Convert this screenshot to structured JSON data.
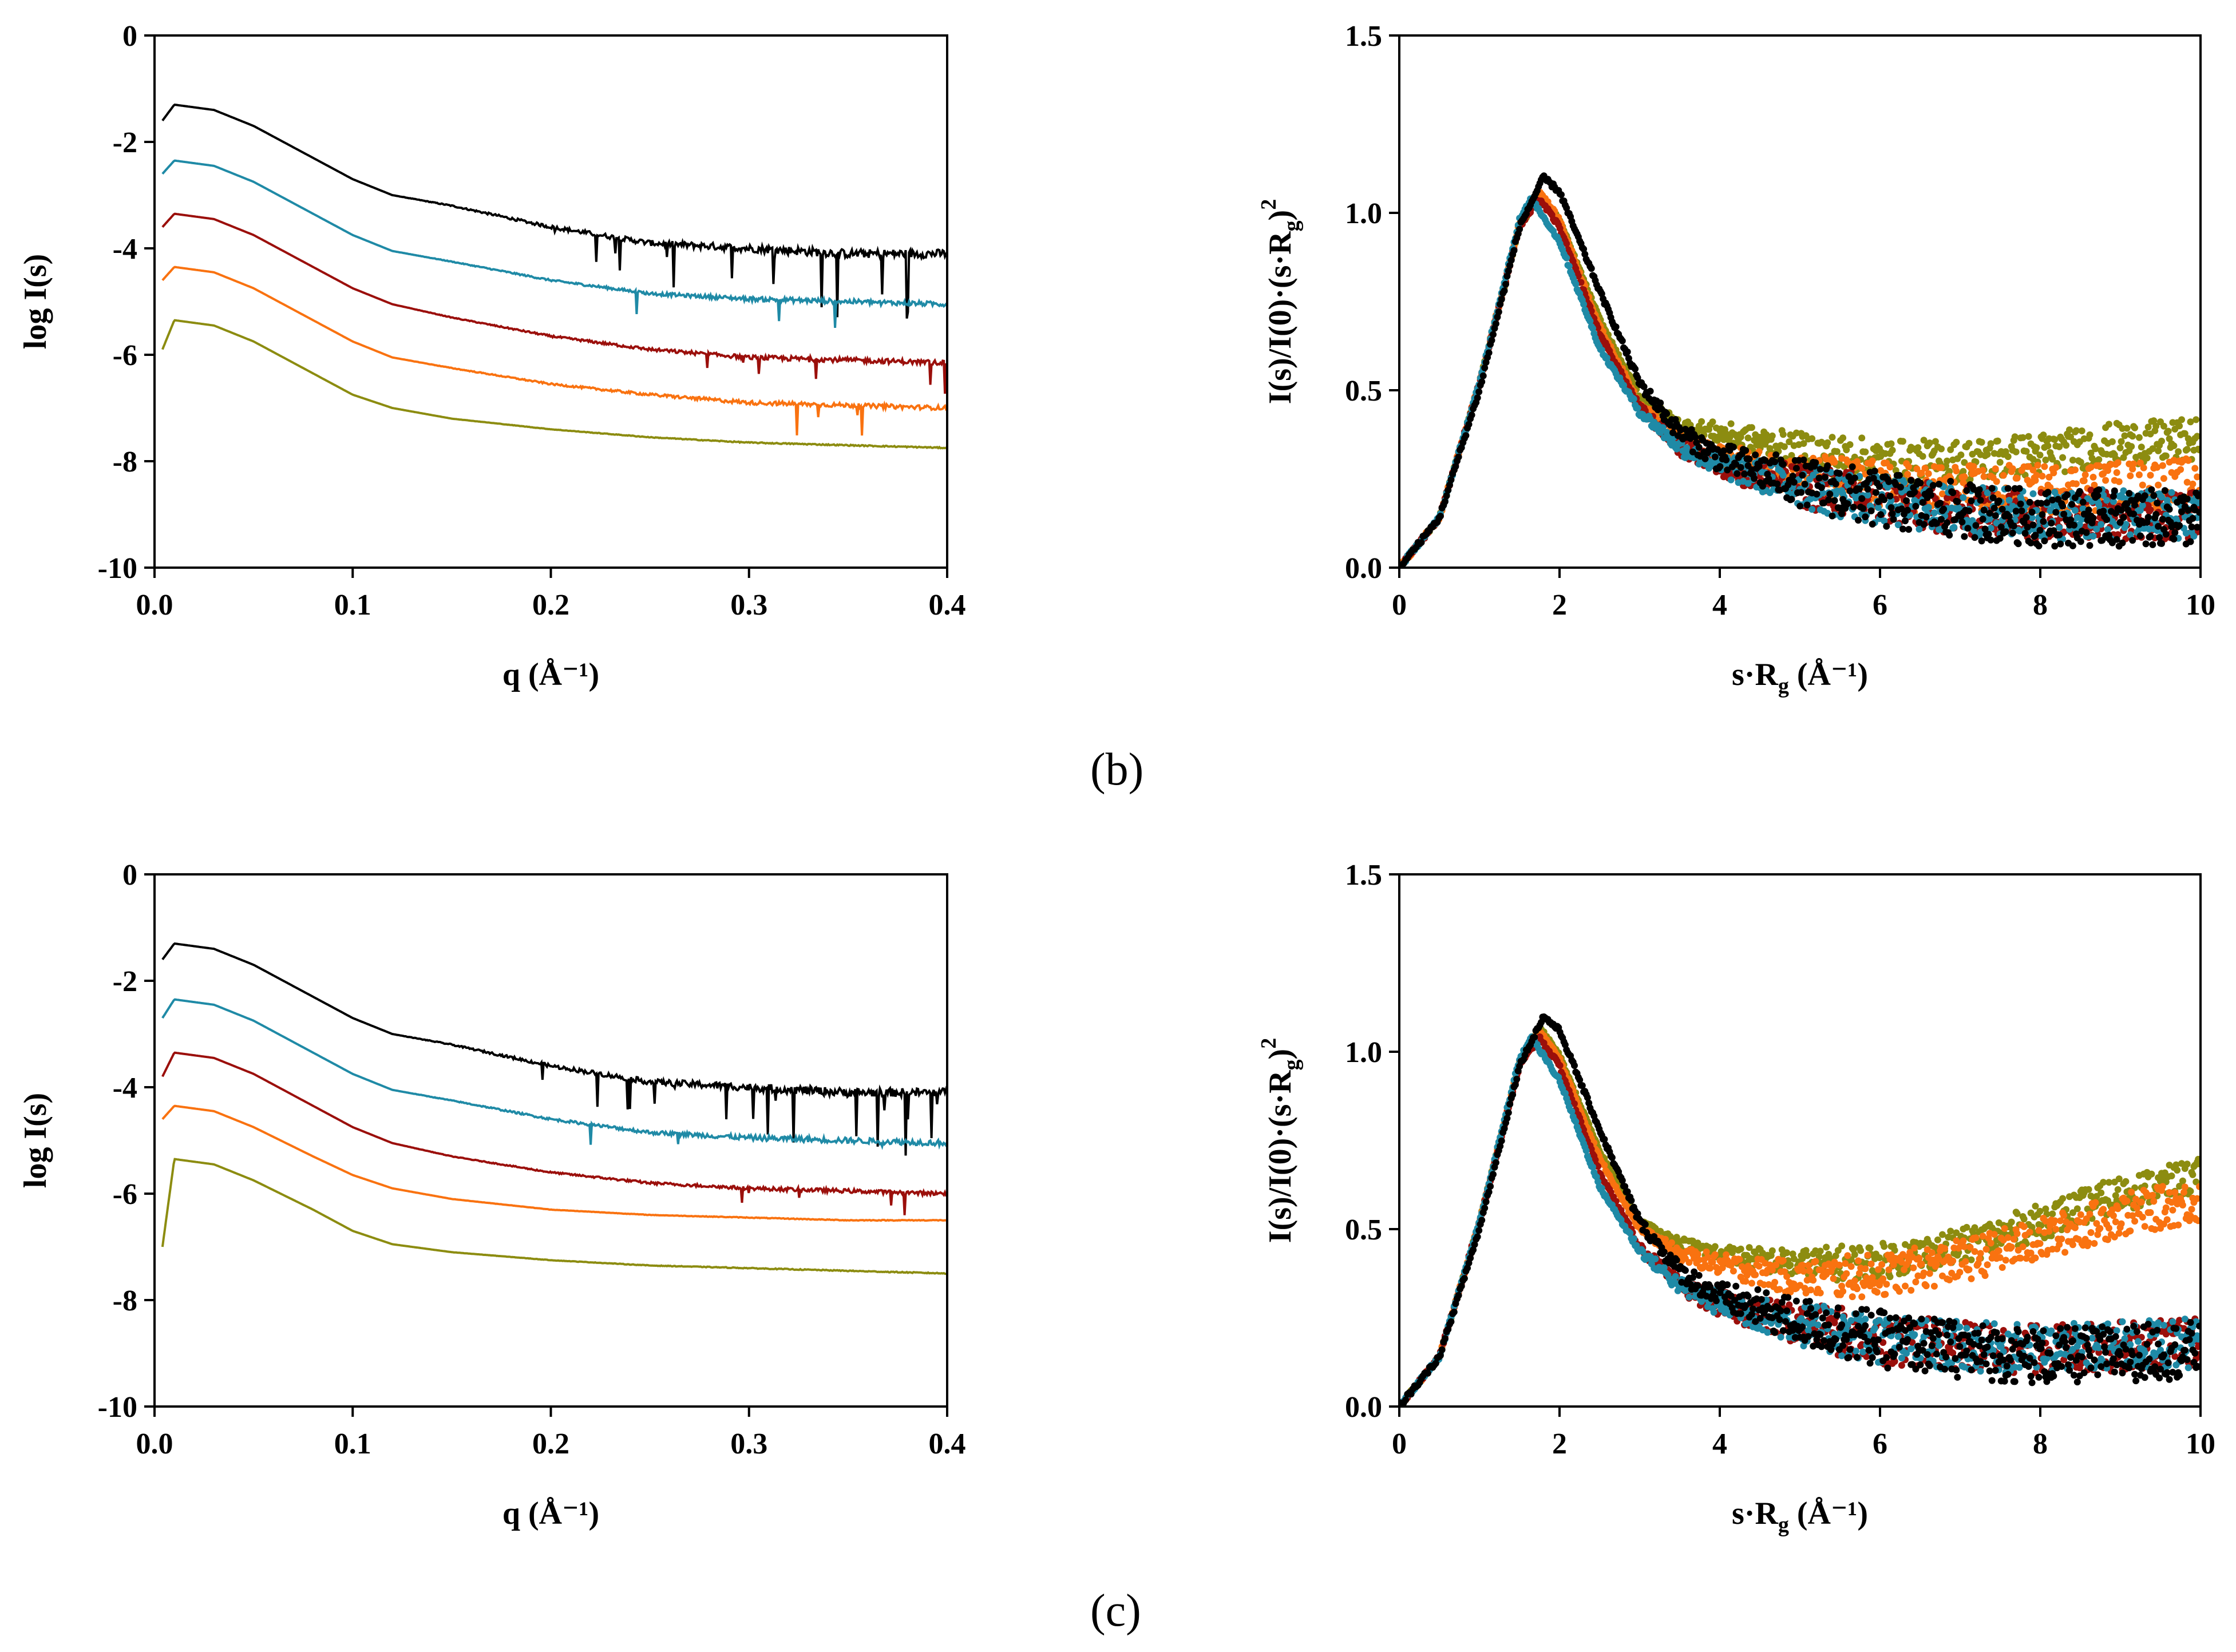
{
  "panels": [
    {
      "label": "(b)"
    },
    {
      "label": "(c)"
    }
  ],
  "series_colors": {
    "black": "#000000",
    "teal": "#1f8aa6",
    "darkred": "#9b0f0b",
    "orange": "#f97210",
    "olive": "#8c8c10"
  },
  "chart_data": [
    {
      "id": "b-left",
      "panel": "(b)",
      "type": "line",
      "xlabel": "q (Å⁻¹)",
      "ylabel": "log I(s)",
      "xlim": [
        0.0,
        0.4
      ],
      "ylim": [
        -10,
        0
      ],
      "xticks": [
        "0.0",
        "0.1",
        "0.2",
        "0.3",
        "0.4"
      ],
      "yticks": [
        "0",
        "-2",
        "-4",
        "-6",
        "-8",
        "-10"
      ],
      "series": [
        {
          "name": "black",
          "x": [
            0.004,
            0.01,
            0.03,
            0.05,
            0.08,
            0.1,
            0.12,
            0.15,
            0.2,
            0.25,
            0.3,
            0.35,
            0.4
          ],
          "y": [
            -1.6,
            -1.3,
            -1.4,
            -1.7,
            -2.3,
            -2.7,
            -3.0,
            -3.2,
            -3.6,
            -3.9,
            -4.0,
            -4.1,
            -4.1
          ],
          "noise": 0.9
        },
        {
          "name": "teal",
          "x": [
            0.004,
            0.01,
            0.03,
            0.05,
            0.08,
            0.1,
            0.12,
            0.15,
            0.2,
            0.25,
            0.3,
            0.35,
            0.4
          ],
          "y": [
            -2.6,
            -2.35,
            -2.45,
            -2.75,
            -3.35,
            -3.75,
            -4.05,
            -4.25,
            -4.6,
            -4.85,
            -4.95,
            -5.0,
            -5.05
          ],
          "noise": 0.5
        },
        {
          "name": "darkred",
          "x": [
            0.004,
            0.01,
            0.03,
            0.05,
            0.08,
            0.1,
            0.12,
            0.15,
            0.2,
            0.25,
            0.3,
            0.35,
            0.4
          ],
          "y": [
            -3.6,
            -3.35,
            -3.45,
            -3.75,
            -4.35,
            -4.75,
            -5.05,
            -5.3,
            -5.65,
            -5.9,
            -6.05,
            -6.1,
            -6.15
          ],
          "noise": 0.5
        },
        {
          "name": "orange",
          "x": [
            0.004,
            0.01,
            0.03,
            0.05,
            0.08,
            0.1,
            0.12,
            0.15,
            0.2,
            0.25,
            0.3,
            0.35,
            0.4
          ],
          "y": [
            -4.6,
            -4.35,
            -4.45,
            -4.75,
            -5.35,
            -5.75,
            -6.05,
            -6.25,
            -6.55,
            -6.75,
            -6.9,
            -6.95,
            -7.0
          ],
          "noise": 0.45
        },
        {
          "name": "olive",
          "x": [
            0.004,
            0.01,
            0.03,
            0.05,
            0.08,
            0.1,
            0.12,
            0.15,
            0.2,
            0.25,
            0.3,
            0.35,
            0.4
          ],
          "y": [
            -5.9,
            -5.35,
            -5.45,
            -5.75,
            -6.35,
            -6.75,
            -7.0,
            -7.2,
            -7.4,
            -7.55,
            -7.65,
            -7.7,
            -7.75
          ],
          "noise": 0.12
        }
      ]
    },
    {
      "id": "b-right",
      "panel": "(b)",
      "type": "scatter",
      "xlabel": "s·R",
      "xlabel_sub": "g",
      "xlabel_tail": " (Å⁻¹)",
      "ylabel": "I(s)/I(0)·(s·R",
      "ylabel_sub": "g",
      "ylabel_tail": ")",
      "ylabel_sup": "2",
      "xlim": [
        0,
        10
      ],
      "ylim": [
        0.0,
        1.5
      ],
      "xticks": [
        "0",
        "2",
        "4",
        "6",
        "8",
        "10"
      ],
      "yticks": [
        "0.0",
        "0.5",
        "1.0",
        "1.5"
      ],
      "series": [
        {
          "name": "olive",
          "x": [
            0,
            0.5,
            1.0,
            1.5,
            1.75,
            2.0,
            2.5,
            3.0,
            3.5,
            4.0,
            5.0,
            6.0,
            7.0,
            8.0,
            9.0,
            10.0
          ],
          "y": [
            0.0,
            0.14,
            0.52,
            0.96,
            1.05,
            0.98,
            0.7,
            0.48,
            0.4,
            0.38,
            0.33,
            0.3,
            0.3,
            0.32,
            0.35,
            0.36
          ],
          "spread": 0.06
        },
        {
          "name": "orange",
          "x": [
            0,
            0.5,
            1.0,
            1.5,
            1.75,
            2.0,
            2.5,
            3.0,
            3.5,
            4.0,
            5.0,
            6.0,
            7.0,
            8.0,
            9.0,
            10.0
          ],
          "y": [
            0.0,
            0.14,
            0.52,
            0.97,
            1.06,
            0.98,
            0.68,
            0.46,
            0.36,
            0.31,
            0.26,
            0.23,
            0.22,
            0.22,
            0.23,
            0.24
          ],
          "spread": 0.07
        },
        {
          "name": "darkred",
          "x": [
            0,
            0.5,
            1.0,
            1.5,
            1.75,
            2.0,
            2.5,
            3.0,
            3.5,
            4.0,
            5.0,
            6.0,
            7.0,
            8.0,
            9.0,
            10.0
          ],
          "y": [
            0.0,
            0.14,
            0.52,
            0.96,
            1.04,
            0.96,
            0.66,
            0.45,
            0.34,
            0.29,
            0.23,
            0.19,
            0.16,
            0.15,
            0.15,
            0.15
          ],
          "spread": 0.07
        },
        {
          "name": "teal",
          "x": [
            0,
            0.5,
            1.0,
            1.5,
            1.65,
            2.0,
            2.5,
            3.0,
            3.5,
            4.0,
            5.0,
            6.0,
            7.0,
            8.0,
            9.0,
            10.0
          ],
          "y": [
            0.0,
            0.14,
            0.52,
            0.98,
            1.04,
            0.92,
            0.62,
            0.44,
            0.34,
            0.29,
            0.23,
            0.19,
            0.16,
            0.15,
            0.15,
            0.15
          ],
          "spread": 0.07
        },
        {
          "name": "black",
          "x": [
            0,
            0.5,
            1.0,
            1.5,
            1.8,
            2.0,
            2.5,
            3.0,
            3.5,
            4.0,
            5.0,
            6.0,
            7.0,
            8.0,
            9.0,
            10.0
          ],
          "y": [
            0.0,
            0.14,
            0.5,
            0.96,
            1.1,
            1.06,
            0.78,
            0.52,
            0.38,
            0.31,
            0.24,
            0.19,
            0.16,
            0.14,
            0.14,
            0.14
          ],
          "spread": 0.08
        }
      ]
    },
    {
      "id": "c-left",
      "panel": "(c)",
      "type": "line",
      "xlabel": "q (Å⁻¹)",
      "ylabel": "log I(s)",
      "xlim": [
        0.0,
        0.4
      ],
      "ylim": [
        -10,
        0
      ],
      "xticks": [
        "0.0",
        "0.1",
        "0.2",
        "0.3",
        "0.4"
      ],
      "yticks": [
        "0",
        "-2",
        "-4",
        "-6",
        "-8",
        "-10"
      ],
      "series": [
        {
          "name": "black",
          "x": [
            0.004,
            0.01,
            0.03,
            0.05,
            0.08,
            0.1,
            0.12,
            0.15,
            0.2,
            0.25,
            0.3,
            0.35,
            0.4
          ],
          "y": [
            -1.6,
            -1.3,
            -1.4,
            -1.7,
            -2.3,
            -2.7,
            -3.0,
            -3.2,
            -3.6,
            -3.9,
            -4.0,
            -4.1,
            -4.1
          ],
          "noise": 0.9
        },
        {
          "name": "teal",
          "x": [
            0.004,
            0.01,
            0.03,
            0.05,
            0.08,
            0.1,
            0.12,
            0.15,
            0.2,
            0.25,
            0.3,
            0.35,
            0.4
          ],
          "y": [
            -2.7,
            -2.35,
            -2.45,
            -2.75,
            -3.35,
            -3.75,
            -4.05,
            -4.25,
            -4.6,
            -4.85,
            -4.95,
            -5.0,
            -5.05
          ],
          "noise": 0.6
        },
        {
          "name": "darkred",
          "x": [
            0.004,
            0.01,
            0.03,
            0.05,
            0.08,
            0.1,
            0.12,
            0.15,
            0.2,
            0.25,
            0.3,
            0.35,
            0.4
          ],
          "y": [
            -3.8,
            -3.35,
            -3.45,
            -3.75,
            -4.35,
            -4.75,
            -5.05,
            -5.3,
            -5.6,
            -5.8,
            -5.9,
            -5.95,
            -6.0
          ],
          "noise": 0.4
        },
        {
          "name": "orange",
          "x": [
            0.004,
            0.01,
            0.03,
            0.05,
            0.08,
            0.1,
            0.12,
            0.15,
            0.2,
            0.25,
            0.3,
            0.35,
            0.4
          ],
          "y": [
            -4.6,
            -4.35,
            -4.45,
            -4.75,
            -5.3,
            -5.65,
            -5.9,
            -6.1,
            -6.3,
            -6.4,
            -6.45,
            -6.5,
            -6.5
          ],
          "noise": 0.08
        },
        {
          "name": "olive",
          "x": [
            0.004,
            0.01,
            0.03,
            0.05,
            0.08,
            0.1,
            0.12,
            0.15,
            0.2,
            0.25,
            0.3,
            0.35,
            0.4
          ],
          "y": [
            -7.0,
            -5.35,
            -5.45,
            -5.75,
            -6.3,
            -6.7,
            -6.95,
            -7.1,
            -7.25,
            -7.35,
            -7.4,
            -7.45,
            -7.5
          ],
          "noise": 0.1
        }
      ]
    },
    {
      "id": "c-right",
      "panel": "(c)",
      "type": "scatter",
      "xlabel": "s·R",
      "xlabel_sub": "g",
      "xlabel_tail": " (Å⁻¹)",
      "ylabel": "I(s)/I(0)·(s·R",
      "ylabel_sub": "g",
      "ylabel_tail": ")",
      "ylabel_sup": "2",
      "xlim": [
        0,
        10
      ],
      "ylim": [
        0.0,
        1.5
      ],
      "xticks": [
        "0",
        "2",
        "4",
        "6",
        "8",
        "10"
      ],
      "yticks": [
        "0.0",
        "0.5",
        "1.0",
        "1.5"
      ],
      "series": [
        {
          "name": "olive",
          "x": [
            0,
            0.5,
            1.0,
            1.5,
            1.75,
            2.0,
            2.5,
            3.0,
            3.5,
            4.0,
            5.0,
            6.0,
            7.0,
            8.0,
            9.0,
            10.0
          ],
          "y": [
            0.0,
            0.14,
            0.52,
            0.97,
            1.07,
            0.99,
            0.72,
            0.52,
            0.46,
            0.43,
            0.4,
            0.41,
            0.45,
            0.52,
            0.6,
            0.65
          ],
          "spread": 0.05
        },
        {
          "name": "orange",
          "x": [
            0,
            0.5,
            1.0,
            1.5,
            1.75,
            2.0,
            2.5,
            3.0,
            3.5,
            4.0,
            5.0,
            6.0,
            7.0,
            8.0,
            9.0,
            10.0
          ],
          "y": [
            0.0,
            0.14,
            0.52,
            0.97,
            1.06,
            0.98,
            0.7,
            0.5,
            0.43,
            0.4,
            0.36,
            0.37,
            0.41,
            0.47,
            0.54,
            0.58
          ],
          "spread": 0.06
        },
        {
          "name": "darkred",
          "x": [
            0,
            0.5,
            1.0,
            1.5,
            1.75,
            2.0,
            2.5,
            3.0,
            3.5,
            4.0,
            5.0,
            6.0,
            7.0,
            8.0,
            9.0,
            10.0
          ],
          "y": [
            0.0,
            0.14,
            0.52,
            0.96,
            1.04,
            0.96,
            0.66,
            0.45,
            0.34,
            0.29,
            0.23,
            0.19,
            0.17,
            0.16,
            0.17,
            0.18
          ],
          "spread": 0.07
        },
        {
          "name": "teal",
          "x": [
            0,
            0.5,
            1.0,
            1.5,
            1.65,
            2.0,
            2.5,
            3.0,
            3.5,
            4.0,
            5.0,
            6.0,
            7.0,
            8.0,
            9.0,
            10.0
          ],
          "y": [
            0.0,
            0.14,
            0.52,
            0.98,
            1.04,
            0.92,
            0.62,
            0.44,
            0.34,
            0.29,
            0.23,
            0.19,
            0.17,
            0.16,
            0.17,
            0.18
          ],
          "spread": 0.07
        },
        {
          "name": "black",
          "x": [
            0,
            0.5,
            1.0,
            1.5,
            1.8,
            2.0,
            2.5,
            3.0,
            3.5,
            4.0,
            5.0,
            6.0,
            7.0,
            8.0,
            9.0,
            10.0
          ],
          "y": [
            0.0,
            0.14,
            0.5,
            0.96,
            1.1,
            1.06,
            0.78,
            0.52,
            0.38,
            0.31,
            0.24,
            0.19,
            0.16,
            0.14,
            0.15,
            0.16
          ],
          "spread": 0.08
        }
      ]
    }
  ]
}
